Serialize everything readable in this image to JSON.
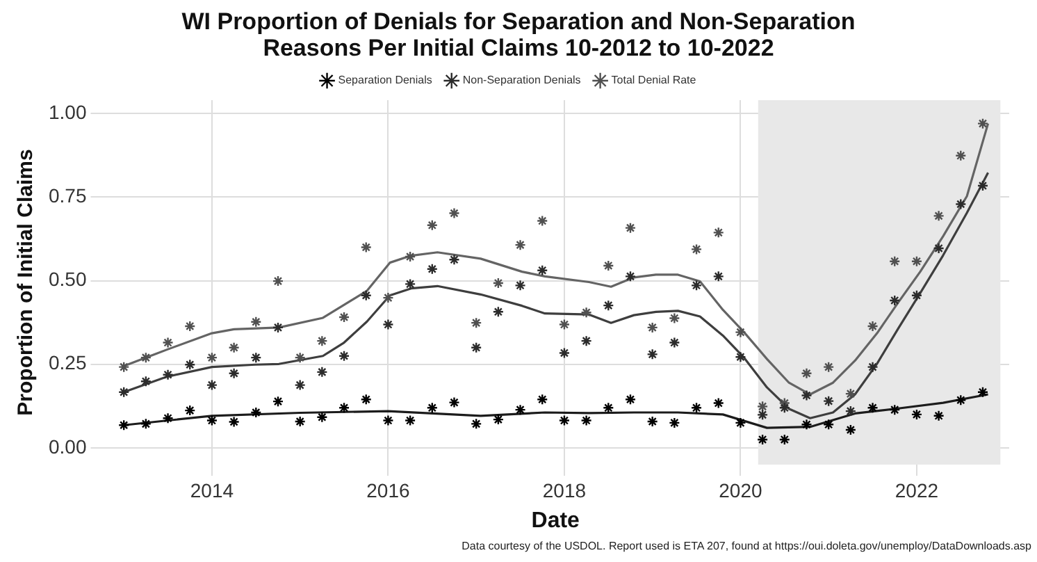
{
  "chart_data": {
    "type": "scatter",
    "title": "WI Proportion of Denials for Separation and Non-Separation Reasons Per Initial Claims 10-2012 to 10-2022",
    "xlabel": "Date",
    "ylabel": "Proportion of Initial Claims",
    "annotations": [
      "Data courtesy of the USDOL. Report used is ETA 207, found at https://oui.doleta.gov/unemploy/DataDownloads.asp"
    ],
    "x": [
      2013,
      2013.25,
      2013.5,
      2013.75,
      2014,
      2014.25,
      2014.5,
      2014.75,
      2015,
      2015.25,
      2015.5,
      2015.75,
      2016,
      2016.25,
      2016.5,
      2016.75,
      2017,
      2017.25,
      2017.5,
      2017.75,
      2018,
      2018.25,
      2018.5,
      2018.75,
      2019,
      2019.25,
      2019.5,
      2019.75,
      2020,
      2020.25,
      2020.5,
      2020.75,
      2021,
      2021.25,
      2021.5,
      2021.75,
      2022,
      2022.25,
      2022.5,
      2022.75
    ],
    "series": [
      {
        "name": "Separation Denials",
        "type": "scatter",
        "color": "#000000",
        "values": [
          0.068,
          0.072,
          0.089,
          0.112,
          0.082,
          0.078,
          0.106,
          0.139,
          0.079,
          0.092,
          0.12,
          0.145,
          0.082,
          0.082,
          0.12,
          0.136,
          0.072,
          0.085,
          0.114,
          0.145,
          0.082,
          0.082,
          0.12,
          0.145,
          0.079,
          0.075,
          0.12,
          0.134,
          0.075,
          0.025,
          0.025,
          0.07,
          0.07,
          0.054,
          0.12,
          0.114,
          0.1,
          0.096,
          0.143,
          0.167
        ]
      },
      {
        "name": "Non-Separation Denials",
        "type": "scatter",
        "color": "#2b2b2b",
        "values": [
          0.167,
          0.199,
          0.219,
          0.249,
          0.188,
          0.223,
          0.27,
          0.36,
          0.188,
          0.227,
          0.275,
          0.456,
          0.369,
          0.49,
          0.535,
          0.563,
          0.3,
          0.407,
          0.486,
          0.531,
          0.284,
          0.32,
          0.426,
          0.513,
          0.28,
          0.315,
          0.486,
          0.513,
          0.272,
          0.099,
          0.12,
          0.157,
          0.14,
          0.11,
          0.242,
          0.441,
          0.456,
          0.597,
          0.729,
          0.784
        ]
      },
      {
        "name": "Total Denial Rate",
        "type": "scatter",
        "color": "#505050",
        "values": [
          0.242,
          0.27,
          0.315,
          0.364,
          0.27,
          0.3,
          0.377,
          0.499,
          0.27,
          0.32,
          0.391,
          0.6,
          0.449,
          0.572,
          0.666,
          0.702,
          0.374,
          0.493,
          0.607,
          0.679,
          0.369,
          0.405,
          0.545,
          0.658,
          0.36,
          0.388,
          0.594,
          0.644,
          0.346,
          0.124,
          0.134,
          0.223,
          0.242,
          0.162,
          0.364,
          0.558,
          0.558,
          0.694,
          0.874,
          0.97
        ]
      },
      {
        "type": "line",
        "marker": "none",
        "color": "#1c1c1c",
        "x": [
          2013,
          2014,
          2015,
          2016,
          2017.05,
          2017.78,
          2018.28,
          2018.79,
          2019.29,
          2019.8,
          2020.3,
          2020.79,
          2021.3,
          2021.79,
          2022.3,
          2022.81
        ],
        "values": [
          0.068,
          0.096,
          0.105,
          0.11,
          0.096,
          0.106,
          0.104,
          0.106,
          0.106,
          0.1,
          0.06,
          0.063,
          0.103,
          0.118,
          0.135,
          0.16
        ]
      },
      {
        "type": "line",
        "marker": "none",
        "color": "#3e3e3e",
        "x": [
          2013,
          2013.49,
          2014,
          2014.49,
          2014.76,
          2015.26,
          2015.5,
          2015.76,
          2016.02,
          2016.26,
          2016.56,
          2017.05,
          2017.52,
          2017.78,
          2018.28,
          2018.53,
          2018.79,
          2019.04,
          2019.29,
          2019.54,
          2019.8,
          2020.04,
          2020.3,
          2020.55,
          2020.79,
          2021.05,
          2021.3,
          2021.55,
          2021.79,
          2022.04,
          2022.3,
          2022.57,
          2022.81
        ],
        "values": [
          0.167,
          0.213,
          0.242,
          0.249,
          0.251,
          0.275,
          0.315,
          0.378,
          0.456,
          0.477,
          0.484,
          0.459,
          0.425,
          0.402,
          0.399,
          0.374,
          0.397,
          0.407,
          0.41,
          0.393,
          0.336,
          0.27,
          0.181,
          0.117,
          0.089,
          0.106,
          0.16,
          0.252,
          0.357,
          0.463,
          0.576,
          0.703,
          0.823
        ]
      },
      {
        "type": "line",
        "marker": "none",
        "color": "#646464",
        "x": [
          2013,
          2013.49,
          2014,
          2014.25,
          2014.76,
          2015.26,
          2015.76,
          2016.02,
          2016.26,
          2016.56,
          2017.05,
          2017.52,
          2017.78,
          2018.28,
          2018.53,
          2018.79,
          2019.04,
          2019.29,
          2019.54,
          2019.8,
          2020.04,
          2020.3,
          2020.55,
          2020.79,
          2021.05,
          2021.3,
          2021.55,
          2021.79,
          2022.04,
          2022.3,
          2022.57,
          2022.81
        ],
        "values": [
          0.245,
          0.294,
          0.343,
          0.355,
          0.36,
          0.389,
          0.47,
          0.554,
          0.575,
          0.585,
          0.566,
          0.527,
          0.513,
          0.496,
          0.482,
          0.51,
          0.518,
          0.518,
          0.498,
          0.413,
          0.346,
          0.266,
          0.195,
          0.16,
          0.195,
          0.261,
          0.343,
          0.435,
          0.527,
          0.633,
          0.753,
          0.97
        ]
      }
    ],
    "bands": [
      {
        "axis": "x",
        "from": 2020.2,
        "to": 2022.95,
        "color": "#e8e8e8"
      }
    ],
    "xlim": [
      2012.75,
      2023.05
    ],
    "xticks": [
      2014,
      2016,
      2018,
      2020,
      2022
    ],
    "ylim": [
      -0.05,
      1.04
    ],
    "yticks": [
      {
        "value": 0,
        "label": "0.00"
      },
      {
        "value": 0.25,
        "label": "0.25"
      },
      {
        "value": 0.5,
        "label": "0.50"
      },
      {
        "value": 0.75,
        "label": "0.75"
      },
      {
        "value": 1,
        "label": "1.00"
      }
    ],
    "grid": true,
    "legend": "top",
    "marker": "cross",
    "line_style": "solid"
  }
}
